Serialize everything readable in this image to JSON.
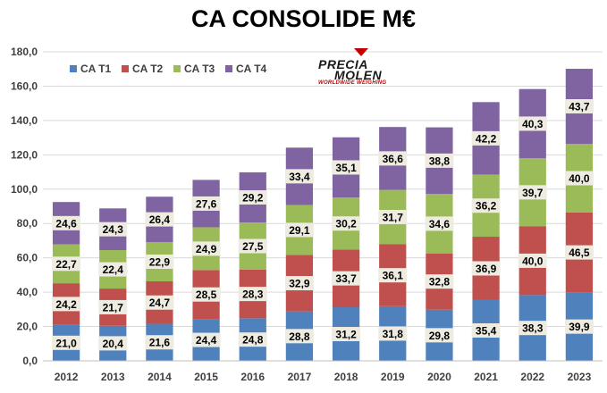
{
  "title": "CA CONSOLIDE M€",
  "logo": {
    "line1": "PRECIA",
    "line2": "MOLEN",
    "tagline": "WORLDWIDE WEIGHING"
  },
  "chart_data": {
    "type": "bar",
    "stacked": true,
    "title": "CA CONSOLIDE M€",
    "xlabel": "",
    "ylabel": "",
    "categories": [
      "2012",
      "2013",
      "2014",
      "2015",
      "2016",
      "2017",
      "2018",
      "2019",
      "2020",
      "2021",
      "2022",
      "2023"
    ],
    "ylim": [
      0,
      180
    ],
    "yticks": [
      "0,0",
      "20,0",
      "40,0",
      "60,0",
      "80,0",
      "100,0",
      "120,0",
      "140,0",
      "160,0",
      "180,0"
    ],
    "grid": true,
    "legend_position": "top-left",
    "series": [
      {
        "name": "CA T1",
        "color": "#4f81bd",
        "values": [
          21.0,
          20.4,
          21.6,
          24.4,
          24.8,
          28.8,
          31.2,
          31.8,
          29.8,
          35.4,
          38.3,
          39.9
        ],
        "labels": [
          "21,0",
          "20,4",
          "21,6",
          "24,4",
          "24,8",
          "28,8",
          "31,2",
          "31,8",
          "29,8",
          "35,4",
          "38,3",
          "39,9"
        ]
      },
      {
        "name": "CA T2",
        "color": "#c0504d",
        "values": [
          24.2,
          21.7,
          24.7,
          28.5,
          28.3,
          32.9,
          33.7,
          36.1,
          32.8,
          36.9,
          40.0,
          46.5
        ],
        "labels": [
          "24,2",
          "21,7",
          "24,7",
          "28,5",
          "28,3",
          "32,9",
          "33,7",
          "36,1",
          "32,8",
          "36,9",
          "40,0",
          "46,5"
        ]
      },
      {
        "name": "CA T3",
        "color": "#9bbb59",
        "values": [
          22.7,
          22.4,
          22.9,
          24.9,
          27.5,
          29.1,
          30.2,
          31.7,
          34.6,
          36.2,
          39.7,
          40.0
        ],
        "labels": [
          "22,7",
          "22,4",
          "22,9",
          "24,9",
          "27,5",
          "29,1",
          "30,2",
          "31,7",
          "34,6",
          "36,2",
          "39,7",
          "40,0"
        ]
      },
      {
        "name": "CA T4",
        "color": "#8064a2",
        "values": [
          24.6,
          24.3,
          26.4,
          27.6,
          29.2,
          33.4,
          35.1,
          36.6,
          38.8,
          42.2,
          40.3,
          43.7
        ],
        "labels": [
          "24,6",
          "24,3",
          "26,4",
          "27,6",
          "29,2",
          "33,4",
          "35,1",
          "36,6",
          "38,8",
          "42,2",
          "40,3",
          "43,7"
        ]
      }
    ]
  }
}
